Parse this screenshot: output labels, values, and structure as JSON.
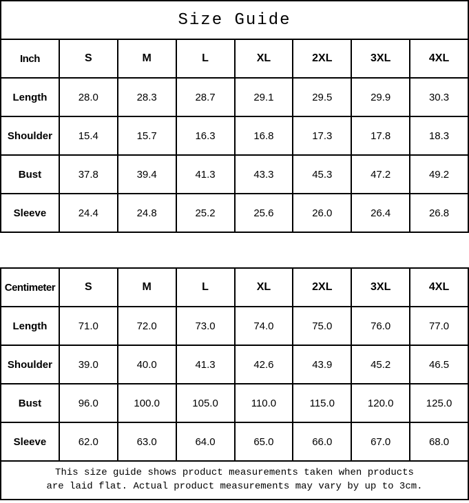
{
  "title": "Size Guide",
  "colors": {
    "background": "#ffffff",
    "text": "#000000",
    "border": "#000000"
  },
  "inch_table": {
    "unit_label": "Inch",
    "sizes": [
      "S",
      "M",
      "L",
      "XL",
      "2XL",
      "3XL",
      "4XL"
    ],
    "rows": [
      {
        "label": "Length",
        "values": [
          "28.0",
          "28.3",
          "28.7",
          "29.1",
          "29.5",
          "29.9",
          "30.3"
        ]
      },
      {
        "label": "Shoulder",
        "values": [
          "15.4",
          "15.7",
          "16.3",
          "16.8",
          "17.3",
          "17.8",
          "18.3"
        ]
      },
      {
        "label": "Bust",
        "values": [
          "37.8",
          "39.4",
          "41.3",
          "43.3",
          "45.3",
          "47.2",
          "49.2"
        ]
      },
      {
        "label": "Sleeve",
        "values": [
          "24.4",
          "24.8",
          "25.2",
          "25.6",
          "26.0",
          "26.4",
          "26.8"
        ]
      }
    ]
  },
  "cm_table": {
    "unit_label": "Centimeter",
    "sizes": [
      "S",
      "M",
      "L",
      "XL",
      "2XL",
      "3XL",
      "4XL"
    ],
    "rows": [
      {
        "label": "Length",
        "values": [
          "71.0",
          "72.0",
          "73.0",
          "74.0",
          "75.0",
          "76.0",
          "77.0"
        ]
      },
      {
        "label": "Shoulder",
        "values": [
          "39.0",
          "40.0",
          "41.3",
          "42.6",
          "43.9",
          "45.2",
          "46.5"
        ]
      },
      {
        "label": "Bust",
        "values": [
          "96.0",
          "100.0",
          "105.0",
          "110.0",
          "115.0",
          "120.0",
          "125.0"
        ]
      },
      {
        "label": "Sleeve",
        "values": [
          "62.0",
          "63.0",
          "64.0",
          "65.0",
          "66.0",
          "67.0",
          "68.0"
        ]
      }
    ]
  },
  "footer_note": "This size guide shows product measurements taken when products are laid flat. Actual product measurements may vary by up to 3cm.",
  "chart_data": [
    {
      "type": "table",
      "title": "Size Guide",
      "unit": "Inch",
      "columns": [
        "Inch",
        "S",
        "M",
        "L",
        "XL",
        "2XL",
        "3XL",
        "4XL"
      ],
      "rows": [
        [
          "Length",
          28.0,
          28.3,
          28.7,
          29.1,
          29.5,
          29.9,
          30.3
        ],
        [
          "Shoulder",
          15.4,
          15.7,
          16.3,
          16.8,
          17.3,
          17.8,
          18.3
        ],
        [
          "Bust",
          37.8,
          39.4,
          41.3,
          43.3,
          45.3,
          47.2,
          49.2
        ],
        [
          "Sleeve",
          24.4,
          24.8,
          25.2,
          25.6,
          26.0,
          26.4,
          26.8
        ]
      ]
    },
    {
      "type": "table",
      "title": "Size Guide",
      "unit": "Centimeter",
      "columns": [
        "Centimeter",
        "S",
        "M",
        "L",
        "XL",
        "2XL",
        "3XL",
        "4XL"
      ],
      "rows": [
        [
          "Length",
          71.0,
          72.0,
          73.0,
          74.0,
          75.0,
          76.0,
          77.0
        ],
        [
          "Shoulder",
          39.0,
          40.0,
          41.3,
          42.6,
          43.9,
          45.2,
          46.5
        ],
        [
          "Bust",
          96.0,
          100.0,
          105.0,
          110.0,
          115.0,
          120.0,
          125.0
        ],
        [
          "Sleeve",
          62.0,
          63.0,
          64.0,
          65.0,
          66.0,
          67.0,
          68.0
        ]
      ]
    }
  ]
}
